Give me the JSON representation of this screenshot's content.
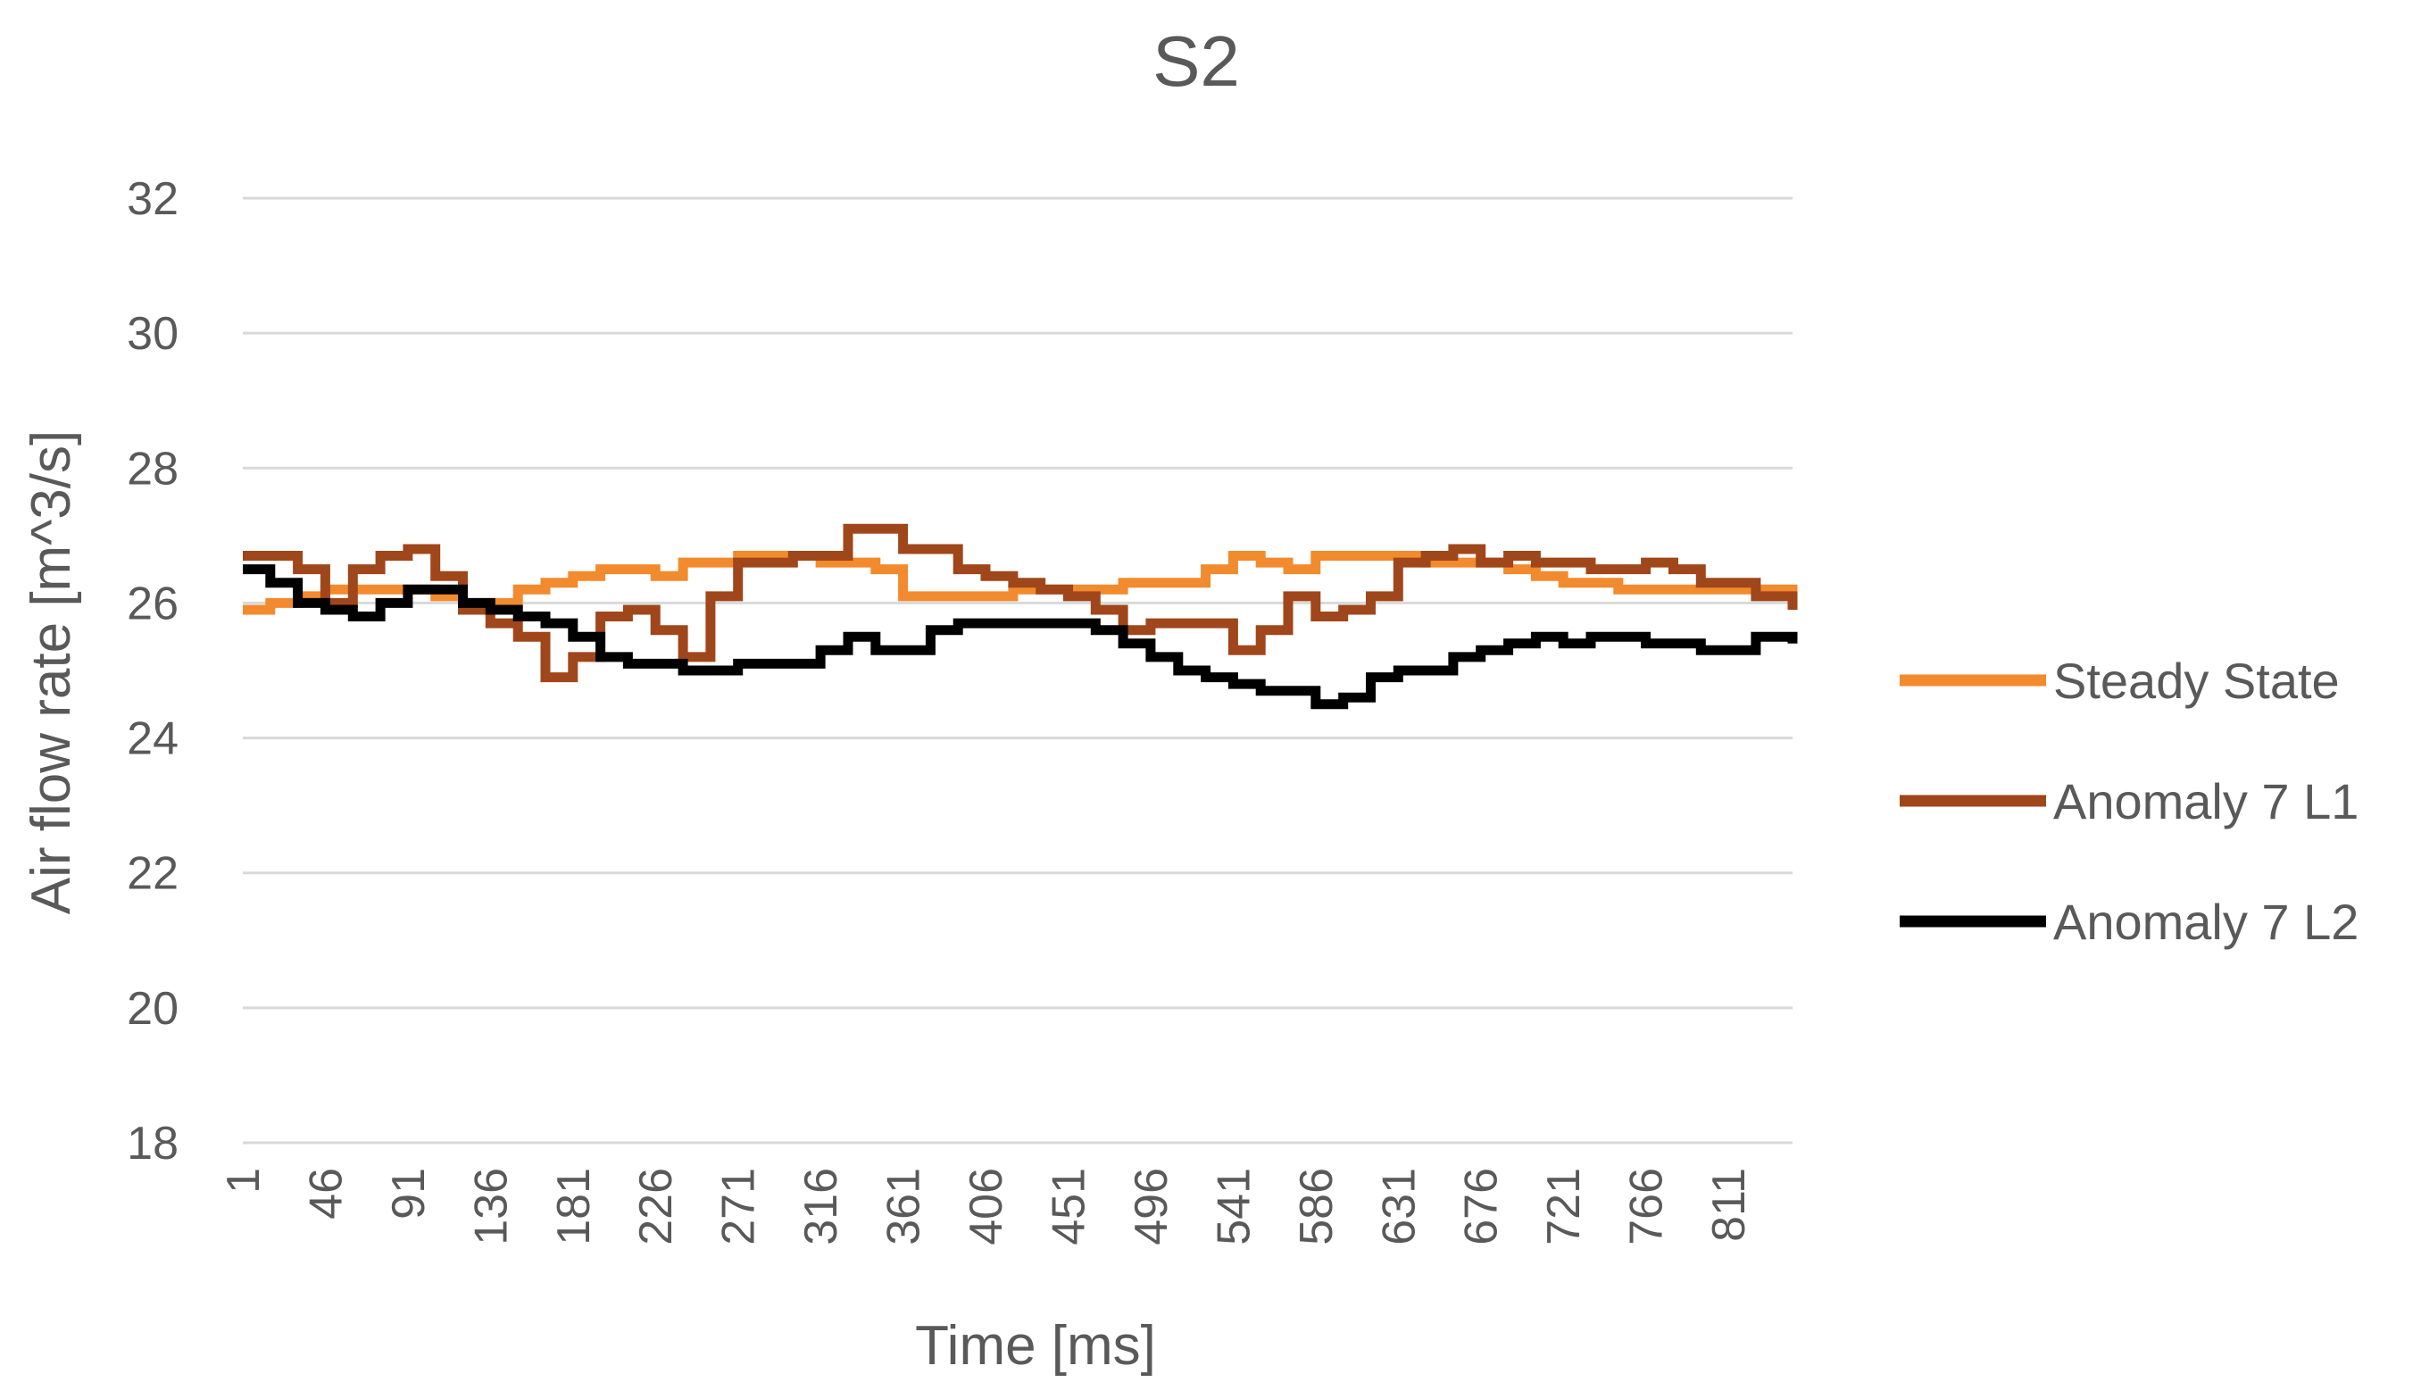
{
  "chart_data": {
    "type": "line",
    "title": "S2",
    "xlabel": "Time [ms]",
    "ylabel": "Air flow rate [m^3/s]",
    "ylim": [
      18,
      32
    ],
    "y_ticks": [
      "18",
      "20",
      "22",
      "24",
      "26",
      "28",
      "30",
      "32"
    ],
    "x_ticks": [
      "1",
      "46",
      "91",
      "136",
      "181",
      "226",
      "271",
      "316",
      "361",
      "406",
      "451",
      "496",
      "541",
      "586",
      "631",
      "676",
      "721",
      "766",
      "811"
    ],
    "xlim": [
      1,
      846
    ],
    "grid": "horizontal",
    "legend_position": "right",
    "series": [
      {
        "name": "Steady State",
        "color": "#F28A2E",
        "x": [
          1,
          16,
          31,
          46,
          61,
          76,
          91,
          106,
          121,
          136,
          151,
          166,
          181,
          196,
          211,
          226,
          241,
          256,
          271,
          286,
          301,
          316,
          331,
          346,
          361,
          376,
          391,
          406,
          421,
          436,
          451,
          466,
          481,
          496,
          511,
          526,
          541,
          556,
          571,
          586,
          601,
          616,
          631,
          646,
          661,
          676,
          691,
          706,
          721,
          736,
          751,
          766,
          781,
          796,
          811,
          826,
          846
        ],
        "values": [
          25.9,
          26.0,
          26.1,
          26.2,
          26.2,
          26.2,
          26.2,
          26.1,
          26.0,
          26.0,
          26.2,
          26.3,
          26.4,
          26.5,
          26.5,
          26.4,
          26.6,
          26.6,
          26.7,
          26.7,
          26.7,
          26.6,
          26.6,
          26.5,
          26.1,
          26.1,
          26.1,
          26.1,
          26.2,
          26.2,
          26.2,
          26.2,
          26.3,
          26.3,
          26.3,
          26.5,
          26.7,
          26.6,
          26.5,
          26.7,
          26.7,
          26.7,
          26.7,
          26.6,
          26.6,
          26.6,
          26.5,
          26.4,
          26.3,
          26.3,
          26.2,
          26.2,
          26.2,
          26.2,
          26.2,
          26.2,
          26.1
        ]
      },
      {
        "name": "Anomaly 7 L1",
        "color": "#A0461B",
        "x": [
          1,
          16,
          31,
          46,
          61,
          76,
          91,
          106,
          121,
          136,
          151,
          166,
          181,
          196,
          211,
          226,
          241,
          256,
          271,
          286,
          301,
          316,
          331,
          346,
          361,
          376,
          391,
          406,
          421,
          436,
          451,
          466,
          481,
          496,
          511,
          526,
          541,
          556,
          571,
          586,
          601,
          616,
          631,
          646,
          661,
          676,
          691,
          706,
          721,
          736,
          751,
          766,
          781,
          796,
          811,
          826,
          846
        ],
        "values": [
          26.7,
          26.7,
          26.5,
          26.0,
          26.5,
          26.7,
          26.8,
          26.4,
          25.9,
          25.7,
          25.5,
          24.9,
          25.2,
          25.8,
          25.9,
          25.6,
          25.2,
          26.1,
          26.6,
          26.6,
          26.7,
          26.7,
          27.1,
          27.1,
          26.8,
          26.8,
          26.5,
          26.4,
          26.3,
          26.2,
          26.1,
          25.9,
          25.6,
          25.7,
          25.7,
          25.7,
          25.3,
          25.6,
          26.1,
          25.8,
          25.9,
          26.1,
          26.6,
          26.7,
          26.8,
          26.6,
          26.7,
          26.6,
          26.6,
          26.5,
          26.5,
          26.6,
          26.5,
          26.3,
          26.3,
          26.1,
          25.9
        ]
      },
      {
        "name": "Anomaly 7 L2",
        "color": "#000000",
        "x": [
          1,
          16,
          31,
          46,
          61,
          76,
          91,
          106,
          121,
          136,
          151,
          166,
          181,
          196,
          211,
          226,
          241,
          256,
          271,
          286,
          301,
          316,
          331,
          346,
          361,
          376,
          391,
          406,
          421,
          436,
          451,
          466,
          481,
          496,
          511,
          526,
          541,
          556,
          571,
          586,
          601,
          616,
          631,
          646,
          661,
          676,
          691,
          706,
          721,
          736,
          751,
          766,
          781,
          796,
          811,
          826,
          846
        ],
        "values": [
          26.5,
          26.3,
          26.0,
          25.9,
          25.8,
          26.0,
          26.2,
          26.2,
          26.0,
          25.9,
          25.8,
          25.7,
          25.5,
          25.2,
          25.1,
          25.1,
          25.0,
          25.0,
          25.1,
          25.1,
          25.1,
          25.3,
          25.5,
          25.3,
          25.3,
          25.6,
          25.7,
          25.7,
          25.7,
          25.7,
          25.7,
          25.6,
          25.4,
          25.2,
          25.0,
          24.9,
          24.8,
          24.7,
          24.7,
          24.5,
          24.6,
          24.9,
          25.0,
          25.0,
          25.2,
          25.3,
          25.4,
          25.5,
          25.4,
          25.5,
          25.5,
          25.4,
          25.4,
          25.3,
          25.3,
          25.5,
          25.4
        ]
      }
    ]
  }
}
